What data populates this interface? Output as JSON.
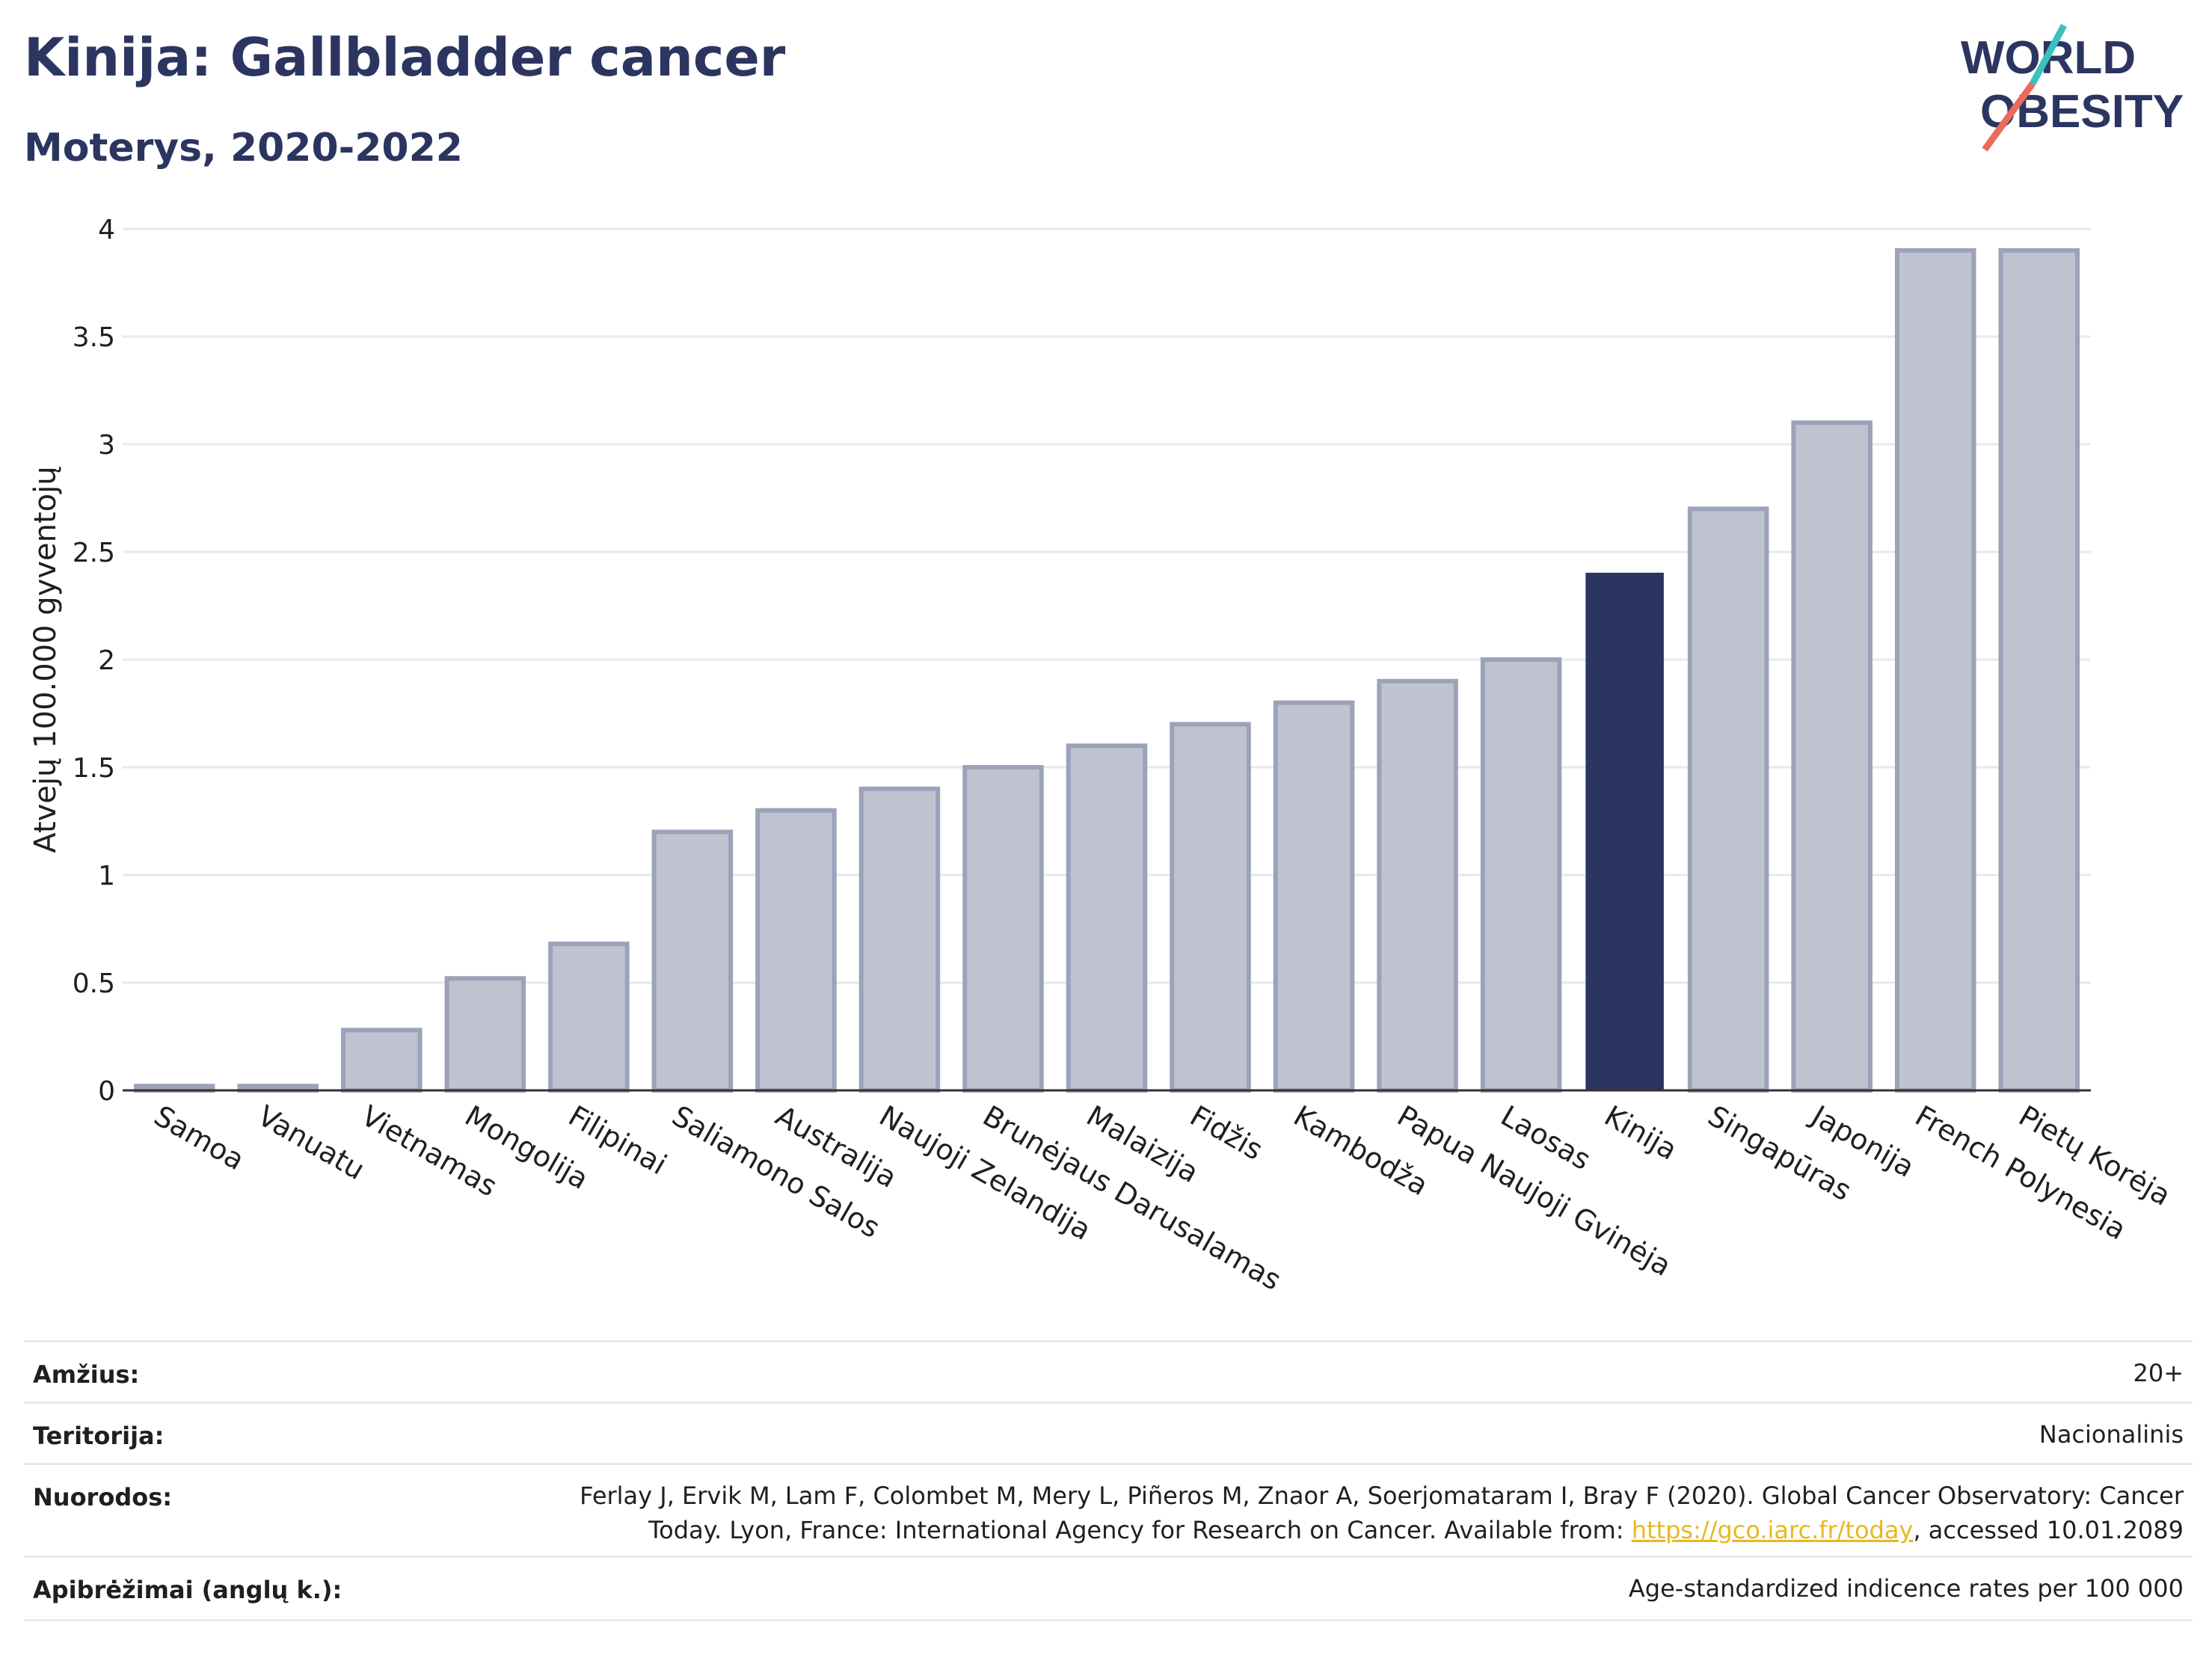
{
  "title": "Kinija: Gallbladder cancer",
  "subtitle": "Moterys, 2020-2022",
  "logo": {
    "line1": "WORLD",
    "line2": "OBESITY"
  },
  "colors": {
    "highlight": "#2b3560",
    "bar": "#bfc3d0",
    "bar_stroke": "#9ca2b8",
    "grid": "#e6e8ec",
    "title": "#2b3560"
  },
  "chart_data": {
    "type": "bar",
    "categories": [
      "Samoa",
      "Vanuatu",
      "Vietnamas",
      "Mongolija",
      "Filipinai",
      "Saliamono Salos",
      "Australija",
      "Naujoji Zelandija",
      "Brunėjaus Darusalamas",
      "Malaizija",
      "Fidžis",
      "Kambodža",
      "Papua Naujoji Gvinėja",
      "Laosas",
      "Kinija",
      "Singapūras",
      "Japonija",
      "French Polynesia",
      "Pietų Korėja"
    ],
    "values": [
      0.02,
      0.02,
      0.28,
      0.52,
      0.68,
      1.2,
      1.3,
      1.4,
      1.5,
      1.6,
      1.7,
      1.8,
      1.9,
      2.0,
      2.4,
      2.7,
      3.1,
      3.9,
      3.9
    ],
    "highlight": "Kinija",
    "ylabel": "Atvejų 100.000 gyventojų",
    "xlabel": "",
    "ylim": [
      0,
      4
    ],
    "yticks": [
      "0",
      "0.5",
      "1",
      "1.5",
      "2",
      "2.5",
      "3",
      "3.5",
      "4"
    ],
    "grid": true,
    "legend": "none"
  },
  "meta": {
    "age_label": "Amžius:",
    "age_value": "20+",
    "territory_label": "Teritorija:",
    "territory_value": "Nacionalinis",
    "refs_label": "Nuorodos:",
    "refs_line1": "Ferlay J, Ervik M, Lam F, Colombet M, Mery L, Piñeros M, Znaor A, Soerjomataram I, Bray F (2020). Global Cancer Observatory: Cancer",
    "refs_line2_pre": "Today. Lyon, France: International Agency for Research on Cancer. Available from: ",
    "refs_link": "https://gco.iarc.fr/today",
    "refs_line2_post": ", accessed 10.01.2089",
    "defs_label": "Apibrėžimai (anglų k.):",
    "defs_value": "Age-standardized indicence rates per 100 000"
  }
}
